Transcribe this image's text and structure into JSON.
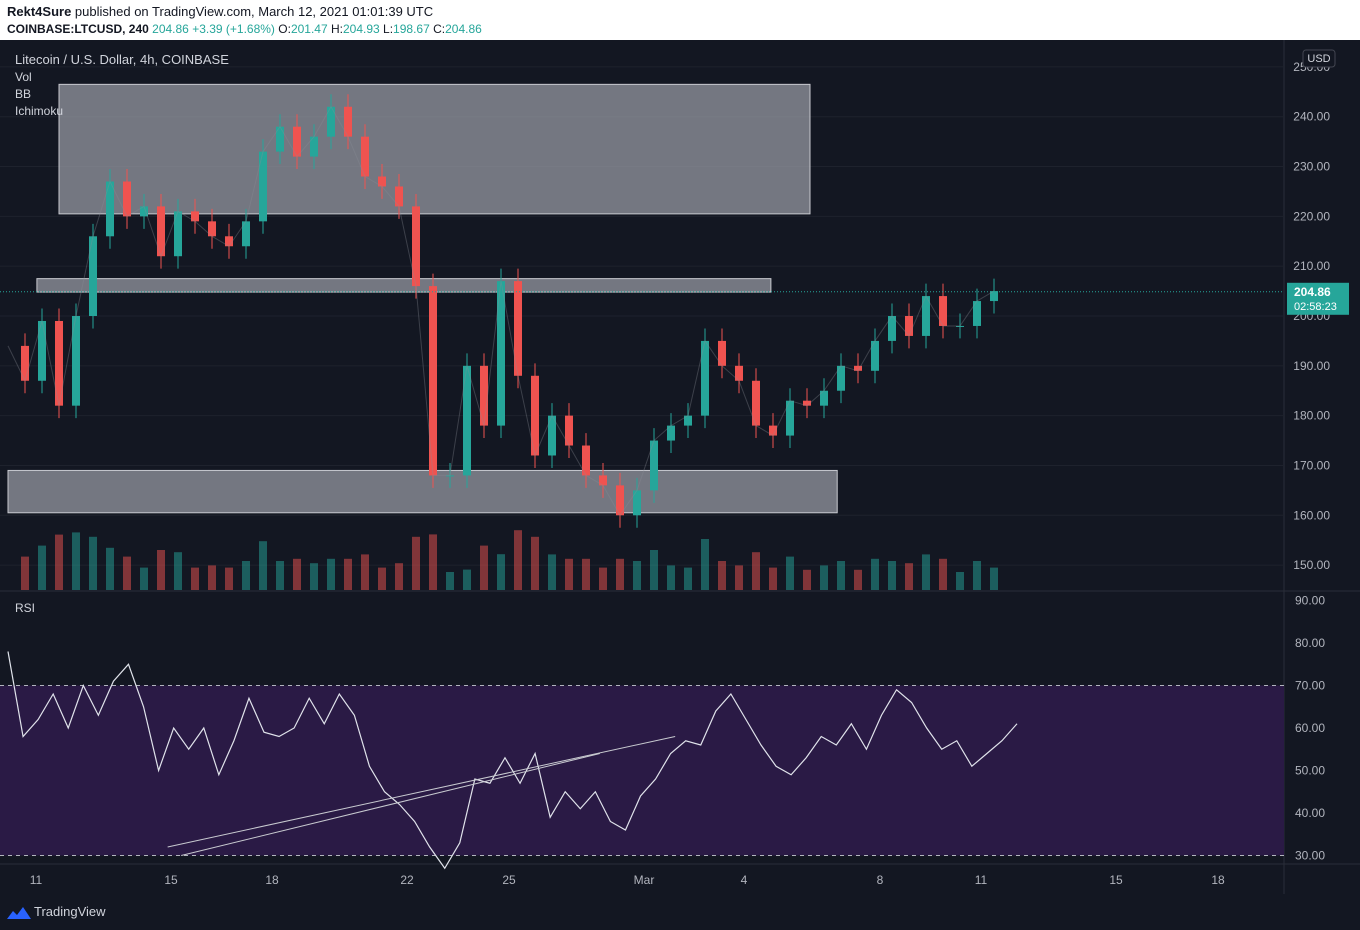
{
  "header": {
    "author": "Rekt4Sure",
    "published_text": " published on TradingView.com, March 12, 2021 01:01:39 UTC",
    "symbol": "COINBASE:LTCUSD, 240",
    "price": "204.86",
    "change": "+3.39 (+1.68%)",
    "ohlc": [
      {
        "label": "O:",
        "value": "201.47"
      },
      {
        "label": "H:",
        "value": "204.93"
      },
      {
        "label": "L:",
        "value": "198.67"
      },
      {
        "label": "C:",
        "value": "204.86"
      }
    ]
  },
  "legend": {
    "title": "Litecoin / U.S. Dollar, 4h, COINBASE",
    "indicators": [
      "Vol",
      "BB",
      "Ichimoku"
    ]
  },
  "price_label": {
    "value": "204.86",
    "countdown": "02:58:23"
  },
  "currency": "USD",
  "rsi_label": "RSI",
  "footer": {
    "brand": "TradingView"
  },
  "colors": {
    "background": "#131722",
    "up": "#26a69a",
    "down": "#ef5350",
    "rsi_band": "#2a1a45",
    "zone": "#9598a1"
  },
  "chart_data": {
    "type": "candlestick",
    "price_axis": {
      "ticks": [
        "150.00",
        "160.00",
        "170.00",
        "180.00",
        "190.00",
        "200.00",
        "210.00",
        "220.00",
        "230.00",
        "240.00",
        "250.00"
      ],
      "ylim": [
        145,
        255
      ]
    },
    "rsi_axis": {
      "ticks": [
        "30.00",
        "40.00",
        "50.00",
        "60.00",
        "70.00",
        "80.00",
        "90.00"
      ],
      "ylim": [
        28,
        92
      ],
      "overbought": 70,
      "oversold": 30
    },
    "time_axis": [
      "11",
      "15",
      "18",
      "22",
      "25",
      "Mar",
      "4",
      "8",
      "11",
      "15",
      "18"
    ],
    "price_series": [
      [
        0,
        194
      ],
      [
        1,
        187
      ],
      [
        2,
        199
      ],
      [
        3,
        182
      ],
      [
        4,
        200
      ],
      [
        5,
        216
      ],
      [
        6,
        227
      ],
      [
        7,
        220
      ],
      [
        8,
        222
      ],
      [
        9,
        212
      ],
      [
        10,
        221
      ],
      [
        11,
        219
      ],
      [
        12,
        216
      ],
      [
        13,
        214
      ],
      [
        14,
        219
      ],
      [
        15,
        233
      ],
      [
        16,
        238
      ],
      [
        17,
        232
      ],
      [
        18,
        236
      ],
      [
        19,
        242
      ],
      [
        20,
        236
      ],
      [
        21,
        228
      ],
      [
        22,
        226
      ],
      [
        23,
        222
      ],
      [
        24,
        206
      ],
      [
        25,
        168
      ],
      [
        26,
        168
      ],
      [
        27,
        190
      ],
      [
        28,
        178
      ],
      [
        29,
        207
      ],
      [
        30,
        188
      ],
      [
        31,
        172
      ],
      [
        32,
        180
      ],
      [
        33,
        174
      ],
      [
        34,
        168
      ],
      [
        35,
        166
      ],
      [
        36,
        160
      ],
      [
        37,
        165
      ],
      [
        38,
        175
      ],
      [
        39,
        178
      ],
      [
        40,
        180
      ],
      [
        41,
        195
      ],
      [
        42,
        190
      ],
      [
        43,
        187
      ],
      [
        44,
        178
      ],
      [
        45,
        176
      ],
      [
        46,
        183
      ],
      [
        47,
        182
      ],
      [
        48,
        185
      ],
      [
        49,
        190
      ],
      [
        50,
        189
      ],
      [
        51,
        195
      ],
      [
        52,
        200
      ],
      [
        53,
        196
      ],
      [
        54,
        204
      ],
      [
        55,
        198
      ],
      [
        56,
        198
      ],
      [
        57,
        203
      ],
      [
        58,
        205
      ]
    ],
    "rsi_series": [
      [
        0,
        78
      ],
      [
        1,
        58
      ],
      [
        2,
        62
      ],
      [
        3,
        68
      ],
      [
        4,
        60
      ],
      [
        5,
        70
      ],
      [
        6,
        63
      ],
      [
        7,
        71
      ],
      [
        8,
        75
      ],
      [
        9,
        65
      ],
      [
        10,
        50
      ],
      [
        11,
        60
      ],
      [
        12,
        55
      ],
      [
        13,
        60
      ],
      [
        14,
        49
      ],
      [
        15,
        57
      ],
      [
        16,
        67
      ],
      [
        17,
        59
      ],
      [
        18,
        58
      ],
      [
        19,
        60
      ],
      [
        20,
        67
      ],
      [
        21,
        61
      ],
      [
        22,
        68
      ],
      [
        23,
        63
      ],
      [
        24,
        51
      ],
      [
        25,
        45
      ],
      [
        26,
        42
      ],
      [
        27,
        38
      ],
      [
        28,
        32
      ],
      [
        29,
        27
      ],
      [
        30,
        33
      ],
      [
        31,
        48
      ],
      [
        32,
        47
      ],
      [
        33,
        53
      ],
      [
        34,
        47
      ],
      [
        35,
        54
      ],
      [
        36,
        39
      ],
      [
        37,
        45
      ],
      [
        38,
        41
      ],
      [
        39,
        45
      ],
      [
        40,
        38
      ],
      [
        41,
        36
      ],
      [
        42,
        44
      ],
      [
        43,
        48
      ],
      [
        44,
        54
      ],
      [
        45,
        57
      ],
      [
        46,
        56
      ],
      [
        47,
        64
      ],
      [
        48,
        68
      ],
      [
        49,
        62
      ],
      [
        50,
        56
      ],
      [
        51,
        51
      ],
      [
        52,
        49
      ],
      [
        53,
        53
      ],
      [
        54,
        58
      ],
      [
        55,
        56
      ],
      [
        56,
        61
      ],
      [
        57,
        55
      ],
      [
        58,
        63
      ],
      [
        59,
        69
      ],
      [
        60,
        66
      ],
      [
        61,
        60
      ],
      [
        62,
        55
      ],
      [
        63,
        57
      ],
      [
        64,
        51
      ],
      [
        65,
        54
      ],
      [
        66,
        57
      ],
      [
        67,
        61
      ]
    ],
    "zones": [
      {
        "low": 220.5,
        "high": 246.5,
        "from": 3,
        "to": 47
      },
      {
        "low": 204.8,
        "high": 207.5,
        "from": 1.7,
        "to": 44.7
      },
      {
        "low": 160.5,
        "high": 169,
        "from": 0,
        "to": 48.6
      }
    ],
    "rsi_trendlines": [
      {
        "from": [
          10.6,
          32
        ],
        "to": [
          44.3,
          58
        ]
      },
      {
        "from": [
          11.5,
          30
        ],
        "to": [
          39.3,
          54
        ]
      }
    ]
  }
}
